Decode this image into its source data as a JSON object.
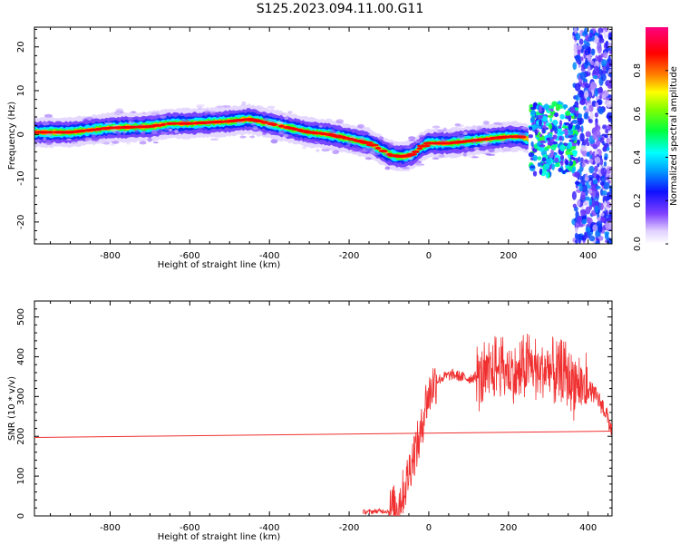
{
  "title": "S125.2023.094.11.00.G11",
  "chart_data": [
    {
      "type": "heatmap",
      "xlabel": "Height of straight line (km)",
      "ylabel": "Frequency (Hz)",
      "xlim": [
        -990,
        460
      ],
      "ylim": [
        -25,
        24.5
      ],
      "xticks": [
        -800,
        -600,
        -400,
        -200,
        0,
        200,
        400
      ],
      "yticks": [
        -20,
        -10,
        0,
        10,
        20
      ],
      "colorbar": {
        "label": "Normalized spectral amplitude",
        "range": [
          0,
          1
        ],
        "ticks": [
          "0.0",
          "0.2",
          "0.4",
          "0.6",
          "0.8"
        ],
        "tick_values": [
          0,
          0.2,
          0.4,
          0.6,
          0.8
        ]
      },
      "ridge": {
        "x": [
          -990,
          -900,
          -800,
          -700,
          -650,
          -600,
          -500,
          -450,
          -400,
          -350,
          -300,
          -250,
          -200,
          -150,
          -120,
          -100,
          -80,
          -60,
          -40,
          -20,
          0,
          50,
          100,
          150,
          200,
          230,
          250,
          270,
          300,
          330,
          360,
          380
        ],
        "y": [
          0.5,
          0.5,
          1.5,
          1.8,
          2.5,
          2.5,
          3,
          3.5,
          2.5,
          1.5,
          0.5,
          0,
          -1,
          -2,
          -3.5,
          -4.5,
          -5,
          -5,
          -4.5,
          -3,
          -2,
          -2,
          -1.5,
          -1,
          -0.5,
          -0.5,
          -1,
          -1,
          -1.5,
          -0.5,
          -1,
          -1
        ]
      }
    },
    {
      "type": "line",
      "xlabel": "Height of straight line (km)",
      "ylabel": "SNR (10 * v/v)",
      "xlim": [
        -990,
        460
      ],
      "ylim": [
        0,
        540
      ],
      "xticks": [
        -800,
        -600,
        -400,
        -200,
        0,
        200,
        400
      ],
      "yticks": [
        0,
        100,
        200,
        300,
        400,
        500
      ],
      "series": [
        {
          "color": "#f03030",
          "x": [
            -165,
            -150,
            -130,
            -100,
            -80,
            -60,
            -40,
            -20,
            -10,
            0,
            10,
            20,
            30,
            40,
            60,
            80,
            100,
            120,
            140,
            160,
            180,
            200,
            220,
            240,
            260,
            280,
            300,
            320,
            340,
            360,
            380,
            400,
            420,
            440,
            460
          ],
          "y": [
            10,
            10,
            12,
            12,
            25,
            70,
            150,
            200,
            280,
            300,
            330,
            340,
            345,
            350,
            355,
            350,
            345,
            350,
            345,
            360,
            380,
            360,
            350,
            370,
            380,
            360,
            370,
            350,
            360,
            340,
            330,
            320,
            300,
            270,
            215
          ]
        },
        {
          "color": "#f03030",
          "x": [
            -990,
            460
          ],
          "y": [
            197,
            213
          ]
        }
      ]
    }
  ]
}
